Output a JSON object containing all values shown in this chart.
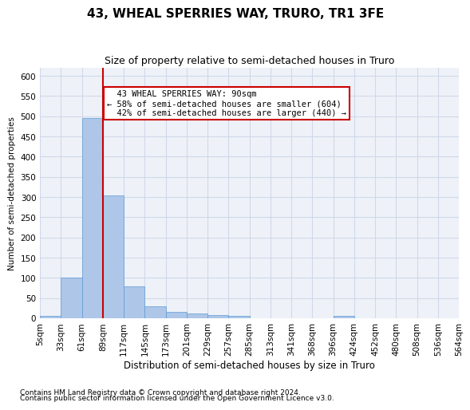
{
  "title": "43, WHEAL SPERRIES WAY, TRURO, TR1 3FE",
  "subtitle": "Size of property relative to semi-detached houses in Truro",
  "xlabel": "Distribution of semi-detached houses by size in Truro",
  "ylabel": "Number of semi-detached properties",
  "footnote1": "Contains HM Land Registry data © Crown copyright and database right 2024.",
  "footnote2": "Contains public sector information licensed under the Open Government Licence v3.0.",
  "bin_labels": [
    "5sqm",
    "33sqm",
    "61sqm",
    "89sqm",
    "117sqm",
    "145sqm",
    "173sqm",
    "201sqm",
    "229sqm",
    "257sqm",
    "285sqm",
    "313sqm",
    "341sqm",
    "368sqm",
    "396sqm",
    "424sqm",
    "452sqm",
    "480sqm",
    "508sqm",
    "536sqm",
    "564sqm"
  ],
  "bar_values": [
    5,
    100,
    495,
    305,
    78,
    30,
    15,
    12,
    8,
    6,
    0,
    0,
    0,
    0,
    5,
    0,
    0,
    0,
    0,
    0
  ],
  "bar_color": "#aec6e8",
  "bar_edge_color": "#5b9bd5",
  "property_size": 90,
  "property_label": "43 WHEAL SPERRIES WAY: 90sqm",
  "smaller_pct": "58%",
  "smaller_count": 604,
  "larger_pct": "42%",
  "larger_count": 440,
  "vline_color": "#cc0000",
  "annotation_box_color": "#cc0000",
  "ylim": [
    0,
    620
  ],
  "yticks": [
    0,
    50,
    100,
    150,
    200,
    250,
    300,
    350,
    400,
    450,
    500,
    550,
    600
  ],
  "grid_color": "#d0d8e8",
  "bg_color": "#eef2f8"
}
